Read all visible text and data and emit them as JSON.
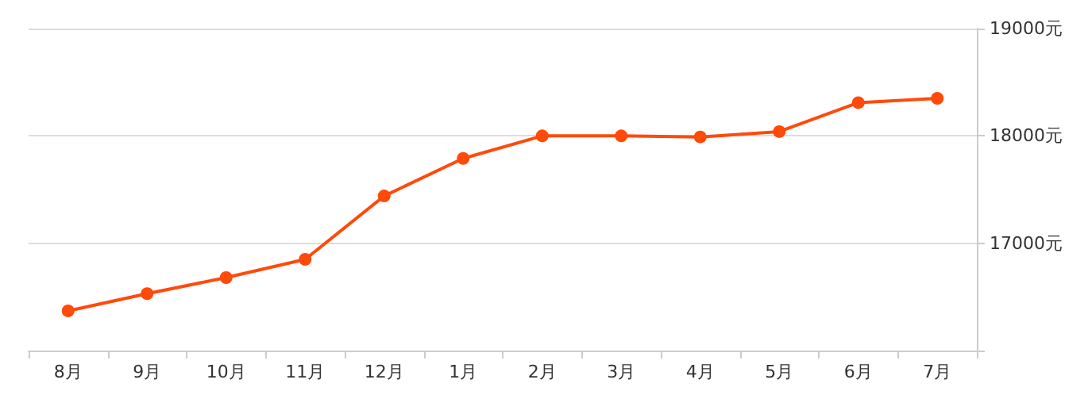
{
  "chart_data": {
    "type": "line",
    "categories": [
      "8月",
      "9月",
      "10月",
      "11月",
      "12月",
      "1月",
      "2月",
      "3月",
      "4月",
      "5月",
      "6月",
      "7月"
    ],
    "series": [
      {
        "color": "#ff4a0a",
        "values": [
          16370,
          16530,
          16680,
          16850,
          17440,
          17790,
          18000,
          18000,
          17990,
          18040,
          18310,
          18350
        ]
      }
    ],
    "ylim": [
      16000,
      19000
    ],
    "yticks": [
      {
        "value": 16000,
        "label": null
      },
      {
        "value": 17000,
        "label": "17000元"
      },
      {
        "value": 18000,
        "label": "18000元"
      },
      {
        "value": 19000,
        "label": "19000元"
      }
    ],
    "grid": "y",
    "marker": "circle",
    "line_style": "solid"
  }
}
